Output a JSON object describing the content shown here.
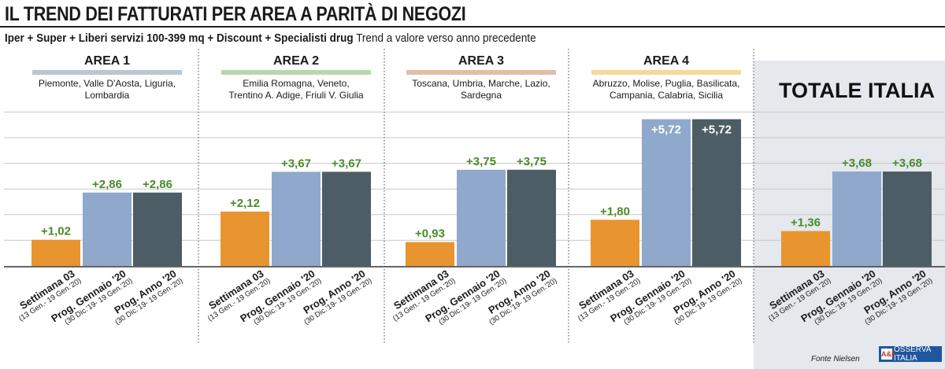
{
  "title": "IL TREND DEI FATTURATI PER AREA A PARITÀ DI NEGOZI",
  "subtitle_bold": "Iper + Super + Liberi servizi 100-399 mq + Discount + Specialisti drug",
  "subtitle_rest": "Trend a valore verso anno precedente",
  "source": "Fonte Nielsen",
  "logo_text": "OSSERVA ITALIA",
  "logo_mark": "A&F",
  "colors": {
    "orange": "#e8952f",
    "light_blue": "#8fa8cc",
    "dark_slate": "#4d5d66",
    "green_text": "#4a8a2a",
    "area1": "#b9c7d4",
    "area2": "#b8d6ad",
    "area3": "#e0bfa8",
    "area4": "#f2db96",
    "total_bg": "#e5e8ec"
  },
  "chart_data": {
    "type": "bar",
    "title": "IL TREND DEI FATTURATI PER AREA A PARITÀ DI NEGOZI",
    "ylabel": "Trend a valore verso anno precedente",
    "ylim": [
      0,
      6
    ],
    "grid": true,
    "series_labels": [
      {
        "name": "Settimana 03",
        "sub": "(13 Gen.- 19 Gen.'20)"
      },
      {
        "name": "Prog. Gennaio '20",
        "sub": "(30 Dic.'19- 19 Gen.'20)"
      },
      {
        "name": "Prog. Anno '20",
        "sub": "(30 Dic.'19- 19 Gen.'20)"
      }
    ],
    "groups": [
      {
        "name": "AREA 1",
        "regions": [
          "Piemonte, Valle D'Aosta, Liguria,",
          "Lombardia"
        ],
        "values": [
          1.02,
          2.86,
          2.86
        ],
        "labels": [
          "+1,02",
          "+2,86",
          "+2,86"
        ]
      },
      {
        "name": "AREA 2",
        "regions": [
          "Emilia Romagna, Veneto,",
          "Trentino A. Adige, Friuli V. Giulia"
        ],
        "values": [
          2.12,
          3.67,
          3.67
        ],
        "labels": [
          "+2,12",
          "+3,67",
          "+3,67"
        ]
      },
      {
        "name": "AREA 3",
        "regions": [
          "Toscana, Umbria, Marche, Lazio,",
          "Sardegna"
        ],
        "values": [
          0.93,
          3.75,
          3.75
        ],
        "labels": [
          "+0,93",
          "+3,75",
          "+3,75"
        ]
      },
      {
        "name": "AREA 4",
        "regions": [
          "Abruzzo, Molise, Puglia, Basilicata,",
          "Campania, Calabria, Sicilia"
        ],
        "values": [
          1.8,
          5.72,
          5.72
        ],
        "labels": [
          "+1,80",
          "+5,72",
          "+5,72"
        ]
      },
      {
        "name": "TOTALE ITALIA",
        "regions": [],
        "values": [
          1.36,
          3.68,
          3.68
        ],
        "labels": [
          "+1,36",
          "+3,68",
          "+3,68"
        ]
      }
    ]
  }
}
